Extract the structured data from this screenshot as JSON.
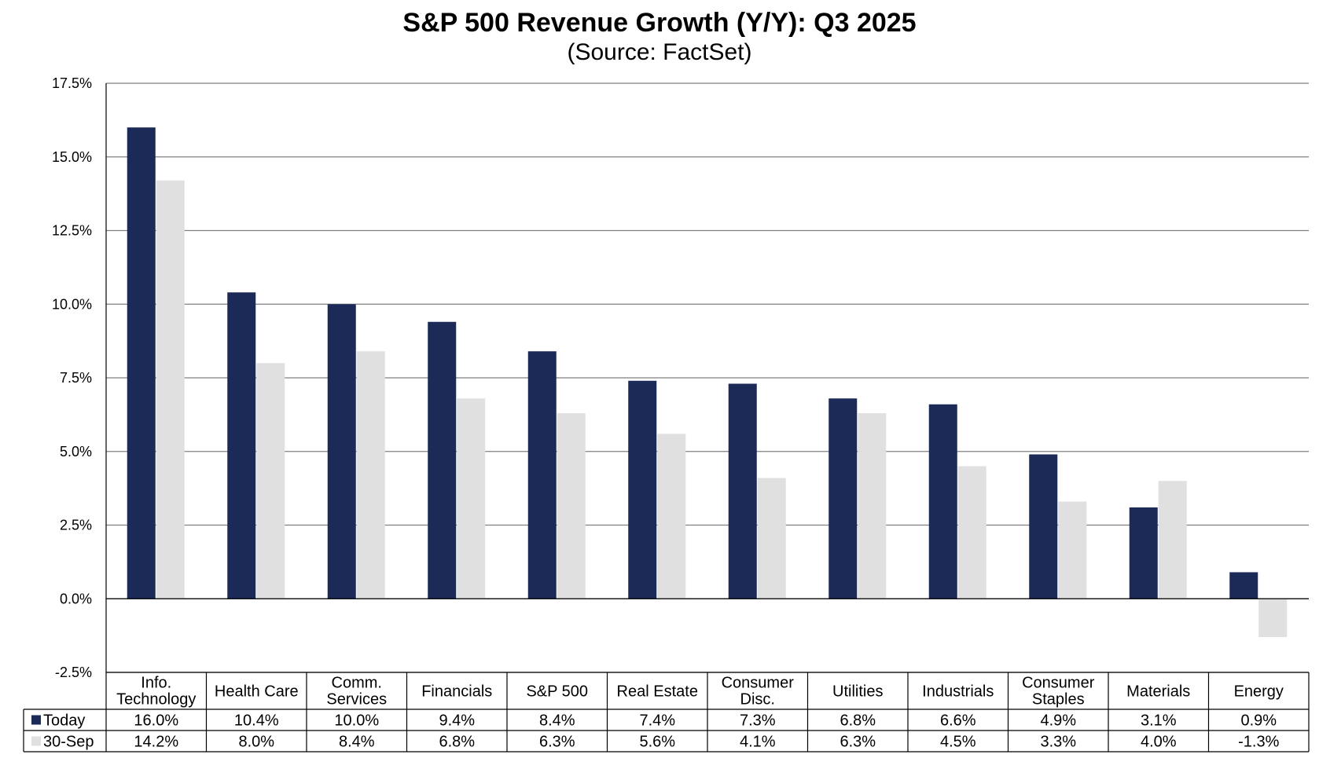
{
  "chart_data": {
    "type": "bar",
    "title": "S&P 500 Revenue Growth (Y/Y):  Q3 2025",
    "subtitle": "(Source: FactSet)",
    "categories": [
      [
        "Info.",
        "Technology"
      ],
      [
        "Health Care"
      ],
      [
        "Comm.",
        "Services"
      ],
      [
        "Financials"
      ],
      [
        "S&P 500"
      ],
      [
        "Real Estate"
      ],
      [
        "Consumer",
        "Disc."
      ],
      [
        "Utilities"
      ],
      [
        "Industrials"
      ],
      [
        "Consumer",
        "Staples"
      ],
      [
        "Materials"
      ],
      [
        "Energy"
      ]
    ],
    "series": [
      {
        "name": "Today",
        "color": "#1b2a56",
        "values": [
          16.0,
          10.4,
          10.0,
          9.4,
          8.4,
          7.4,
          7.3,
          6.8,
          6.6,
          4.9,
          3.1,
          0.9
        ],
        "labels": [
          "16.0%",
          "10.4%",
          "10.0%",
          "9.4%",
          "8.4%",
          "7.4%",
          "7.3%",
          "6.8%",
          "6.6%",
          "4.9%",
          "3.1%",
          "0.9%"
        ]
      },
      {
        "name": "30-Sep",
        "color": "#e0e0e0",
        "values": [
          14.2,
          8.0,
          8.4,
          6.8,
          6.3,
          5.6,
          4.1,
          6.3,
          4.5,
          3.3,
          4.0,
          -1.3
        ],
        "labels": [
          "14.2%",
          "8.0%",
          "8.4%",
          "6.8%",
          "6.3%",
          "5.6%",
          "4.1%",
          "6.3%",
          "4.5%",
          "3.3%",
          "4.0%",
          "-1.3%"
        ]
      }
    ],
    "yticks": [
      "17.5%",
      "15.0%",
      "12.5%",
      "10.0%",
      "7.5%",
      "5.0%",
      "2.5%",
      "0.0%",
      "-2.5%"
    ],
    "ytick_values": [
      17.5,
      15.0,
      12.5,
      10.0,
      7.5,
      5.0,
      2.5,
      0.0,
      -2.5
    ],
    "ylim": [
      -2.5,
      17.5
    ],
    "grid": true,
    "legend": "data-table"
  }
}
